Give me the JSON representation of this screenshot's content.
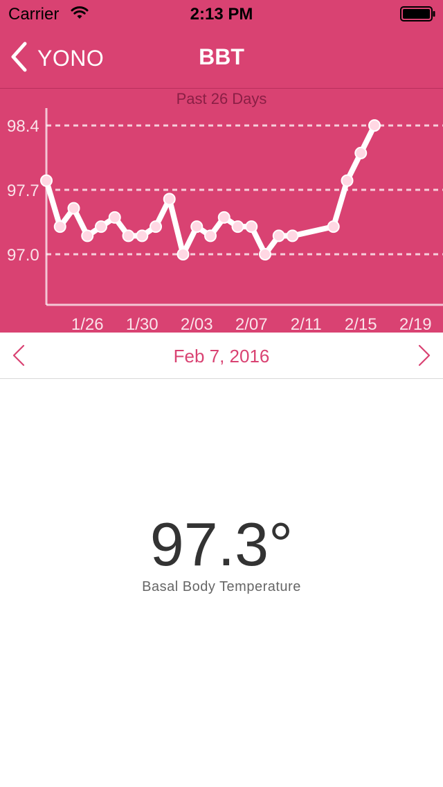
{
  "status_bar": {
    "carrier": "Carrier",
    "time": "2:13 PM"
  },
  "nav": {
    "back_label": "YONO",
    "title": "BBT"
  },
  "chart_data": {
    "type": "line",
    "title": "Past 26 Days",
    "xlabel": "",
    "ylabel": "",
    "x_tick_labels": [
      "1/26",
      "1/30",
      "2/03",
      "2/07",
      "2/11",
      "2/15",
      "2/19"
    ],
    "x_tick_days": [
      3,
      7,
      11,
      15,
      19,
      23,
      27
    ],
    "y_tick_labels": [
      "98.4",
      "97.7",
      "97.0"
    ],
    "y_ticks": [
      98.4,
      97.7,
      97.0
    ],
    "ylim": [
      96.45,
      98.8
    ],
    "xlim": [
      0,
      29
    ],
    "grid": "horizontal dashed at y ticks",
    "line_color": "#ffffff",
    "point_color": "#ffd7e3",
    "series": [
      {
        "x_day": [
          0,
          1,
          2,
          3,
          4,
          5,
          6,
          7,
          8,
          9,
          10,
          11,
          12,
          13,
          14,
          15,
          16,
          17,
          18,
          21,
          22,
          23,
          24
        ],
        "x_date": [
          "1/23",
          "1/24",
          "1/25",
          "1/26",
          "1/27",
          "1/28",
          "1/29",
          "1/30",
          "1/31",
          "2/01",
          "2/02",
          "2/03",
          "2/04",
          "2/05",
          "2/06",
          "2/07",
          "2/08",
          "2/09",
          "2/10",
          "2/13",
          "2/14",
          "2/15",
          "2/16"
        ],
        "values": [
          97.8,
          97.3,
          97.5,
          97.2,
          97.3,
          97.4,
          97.2,
          97.2,
          97.3,
          97.6,
          97.0,
          97.3,
          97.2,
          97.4,
          97.3,
          97.3,
          97.0,
          97.2,
          97.2,
          97.3,
          97.8,
          98.1,
          98.4
        ]
      }
    ]
  },
  "date_nav": {
    "label": "Feb 7, 2016"
  },
  "reading": {
    "value": "97.3°",
    "label": "Basal Body Temperature"
  },
  "colors": {
    "accent": "#d94272",
    "chart_bg": "#d94272",
    "value_text": "#333333"
  }
}
